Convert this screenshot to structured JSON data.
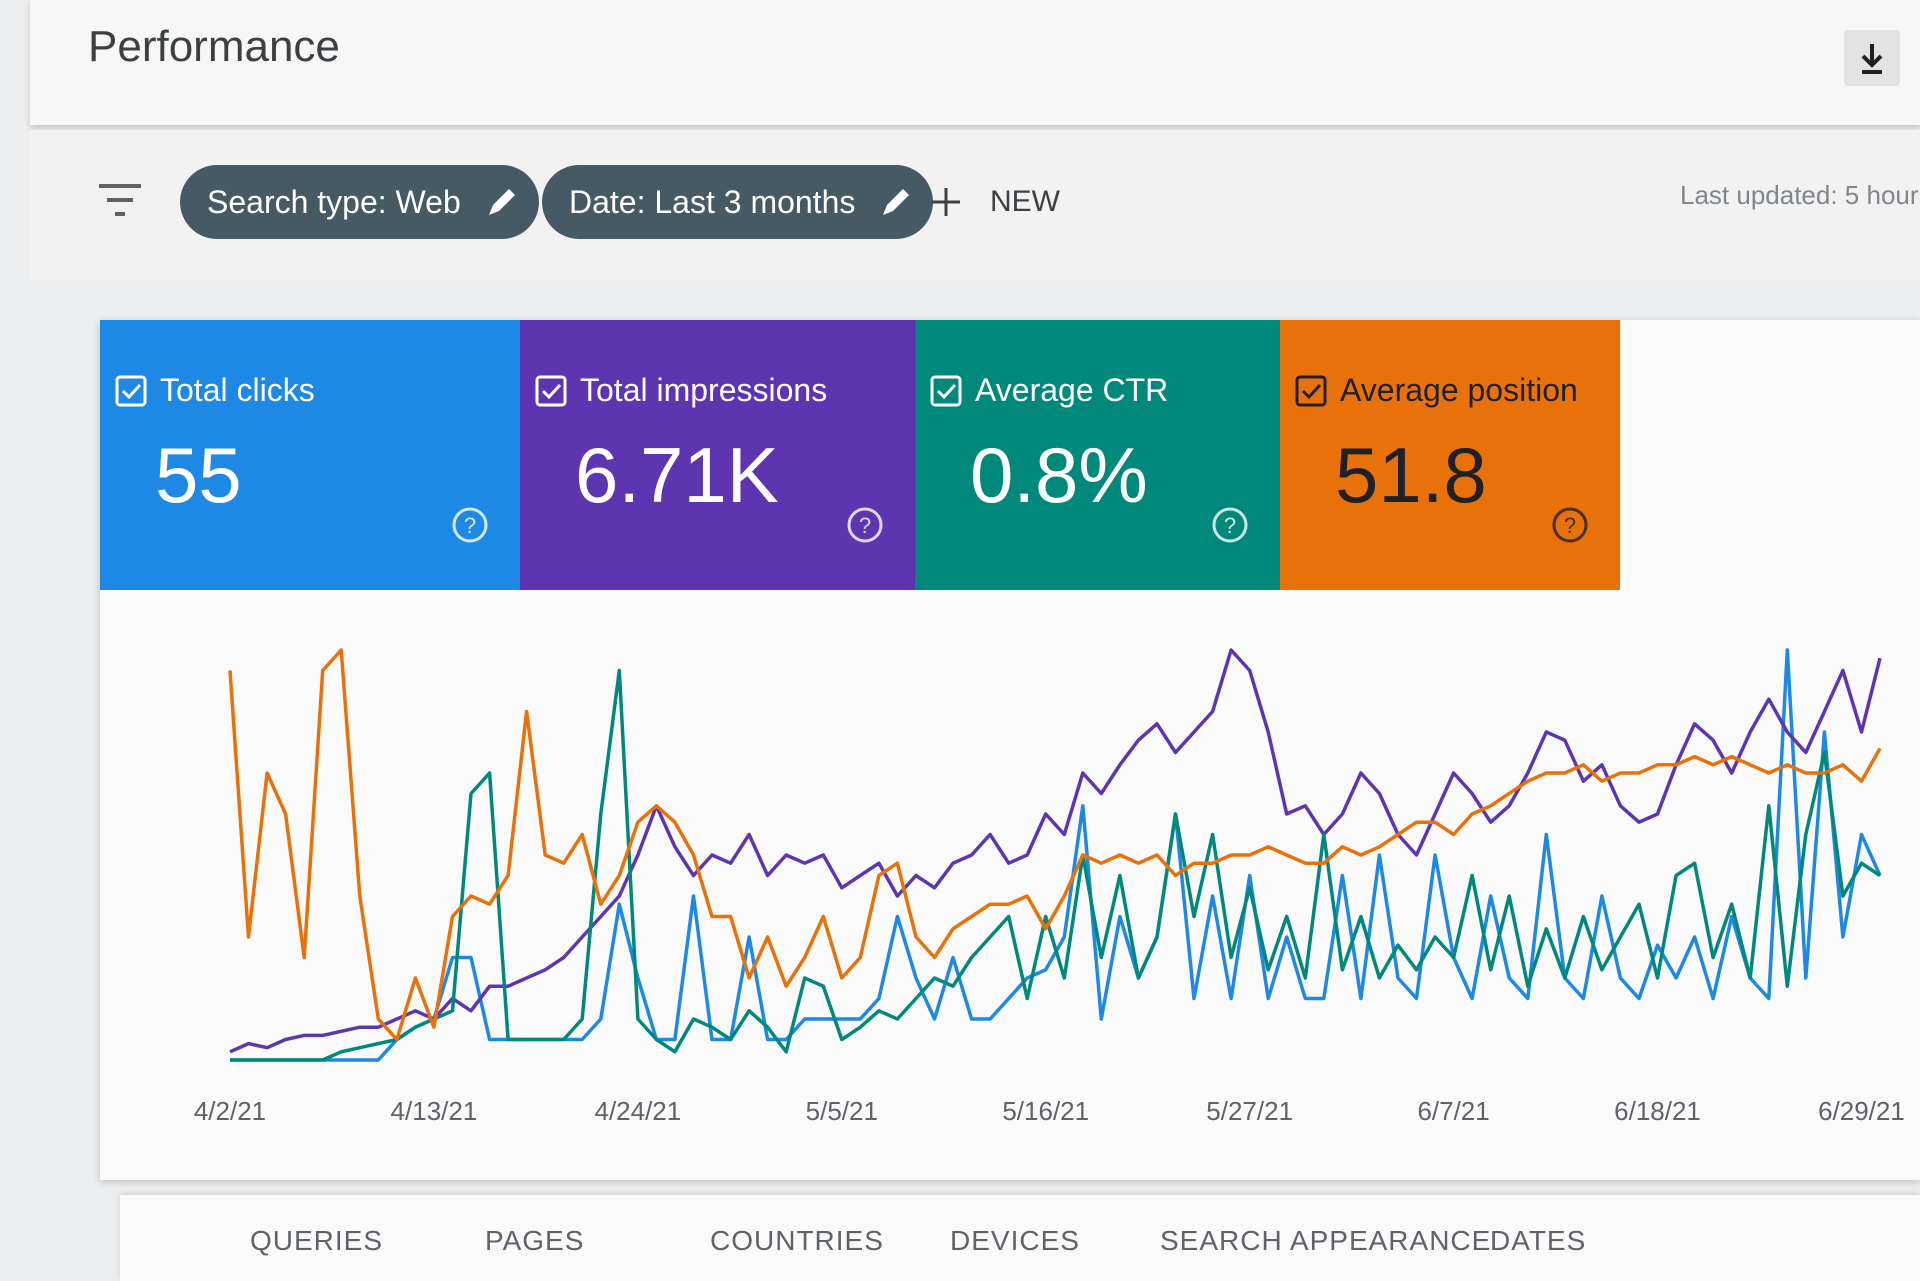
{
  "header": {
    "title": "Performance"
  },
  "filters": [
    "Search type: Web",
    "Date: Last 3 months"
  ],
  "new_button": "NEW",
  "last_updated": "Last updated: 5 hour",
  "metrics": [
    {
      "value": "55"
    },
    {
      "value": "6.71K"
    },
    {
      "value": "0.8%"
    },
    {
      "value": "51.8"
    }
  ],
  "chart_data": {
    "type": "line",
    "categories": [
      "4/2/21",
      null,
      null,
      null,
      null,
      null,
      null,
      null,
      null,
      null,
      null,
      "4/13/21",
      null,
      null,
      null,
      null,
      null,
      null,
      null,
      null,
      null,
      null,
      "4/24/21",
      null,
      null,
      null,
      null,
      null,
      null,
      null,
      null,
      null,
      null,
      "5/5/21",
      null,
      null,
      null,
      null,
      null,
      null,
      null,
      null,
      null,
      null,
      "5/16/21",
      null,
      null,
      null,
      null,
      null,
      null,
      null,
      null,
      null,
      null,
      "5/27/21",
      null,
      null,
      null,
      null,
      null,
      null,
      null,
      null,
      null,
      null,
      "6/7/21",
      null,
      null,
      null,
      null,
      null,
      null,
      null,
      null,
      null,
      null,
      "6/18/21",
      null,
      null,
      null,
      null,
      null,
      null,
      null,
      null,
      null,
      null,
      "6/29/21",
      null
    ],
    "ylim": [
      0,
      100
    ],
    "series": [
      {
        "name": "Total clicks",
        "color": "#1e88e5",
        "values": [
          0,
          0,
          0,
          0,
          0,
          0,
          0,
          0,
          0,
          5,
          8,
          10,
          25,
          25,
          5,
          5,
          5,
          5,
          5,
          5,
          10,
          38,
          20,
          5,
          5,
          40,
          5,
          5,
          30,
          5,
          5,
          10,
          10,
          10,
          10,
          15,
          35,
          20,
          10,
          25,
          10,
          10,
          15,
          20,
          22,
          30,
          62,
          10,
          35,
          20,
          30,
          60,
          15,
          40,
          15,
          45,
          15,
          30,
          15,
          15,
          45,
          15,
          50,
          20,
          15,
          50,
          25,
          15,
          40,
          20,
          15,
          55,
          20,
          15,
          40,
          20,
          15,
          28,
          20,
          30,
          15,
          35,
          20,
          15,
          100,
          20,
          80,
          30,
          55,
          45
        ]
      },
      {
        "name": "Total impressions",
        "color": "#5e35b1",
        "values": [
          2,
          4,
          3,
          5,
          6,
          6,
          7,
          8,
          8,
          10,
          12,
          10,
          15,
          12,
          18,
          18,
          20,
          22,
          25,
          30,
          35,
          40,
          50,
          62,
          52,
          45,
          50,
          48,
          55,
          45,
          50,
          48,
          50,
          42,
          45,
          48,
          40,
          45,
          42,
          48,
          50,
          55,
          48,
          50,
          60,
          55,
          70,
          65,
          72,
          78,
          82,
          75,
          80,
          85,
          100,
          95,
          80,
          60,
          62,
          55,
          60,
          70,
          65,
          55,
          50,
          60,
          70,
          65,
          58,
          62,
          70,
          80,
          78,
          68,
          72,
          62,
          58,
          60,
          72,
          82,
          78,
          70,
          80,
          88,
          80,
          75,
          85,
          95,
          80,
          98
        ]
      },
      {
        "name": "Average CTR",
        "color": "#00897b",
        "values": [
          0,
          0,
          0,
          0,
          0,
          0,
          2,
          3,
          4,
          5,
          8,
          10,
          12,
          65,
          70,
          5,
          5,
          5,
          5,
          10,
          60,
          95,
          10,
          5,
          2,
          10,
          8,
          5,
          12,
          8,
          2,
          20,
          18,
          5,
          8,
          12,
          10,
          15,
          20,
          18,
          25,
          30,
          35,
          15,
          35,
          20,
          50,
          25,
          45,
          20,
          30,
          60,
          35,
          55,
          25,
          42,
          22,
          35,
          20,
          55,
          22,
          35,
          20,
          28,
          22,
          30,
          25,
          45,
          22,
          40,
          18,
          32,
          20,
          35,
          22,
          30,
          38,
          20,
          45,
          48,
          25,
          38,
          20,
          62,
          18,
          55,
          75,
          40,
          48,
          45
        ]
      },
      {
        "name": "Average position",
        "color": "#e8710a",
        "values": [
          95,
          30,
          70,
          60,
          25,
          95,
          100,
          40,
          10,
          5,
          20,
          8,
          35,
          40,
          38,
          45,
          85,
          50,
          48,
          55,
          38,
          45,
          58,
          62,
          58,
          50,
          35,
          35,
          20,
          30,
          18,
          25,
          35,
          20,
          25,
          45,
          48,
          30,
          25,
          32,
          35,
          38,
          38,
          40,
          32,
          40,
          50,
          48,
          50,
          48,
          50,
          45,
          48,
          48,
          50,
          50,
          52,
          50,
          48,
          48,
          52,
          50,
          52,
          55,
          58,
          58,
          55,
          60,
          62,
          65,
          68,
          70,
          70,
          72,
          68,
          70,
          70,
          72,
          72,
          74,
          72,
          74,
          72,
          70,
          72,
          70,
          70,
          72,
          68,
          76
        ]
      }
    ]
  },
  "tabs": [
    "QUERIES",
    "PAGES",
    "COUNTRIES",
    "DEVICES",
    "SEARCH APPEARANCE",
    "DATES"
  ]
}
